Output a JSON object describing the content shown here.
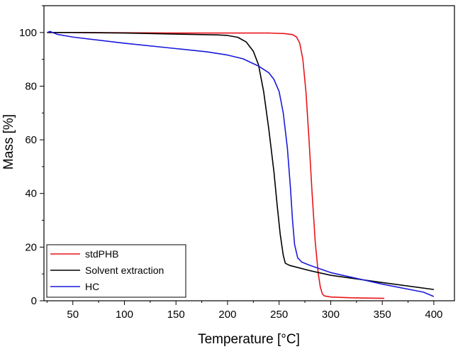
{
  "chart_data": {
    "type": "line",
    "title": "",
    "xlabel": "Temperature [°C]",
    "ylabel": "Mass [%]",
    "xlim": [
      22,
      420
    ],
    "ylim": [
      0,
      110
    ],
    "x_ticks": [
      50,
      100,
      150,
      200,
      250,
      300,
      350,
      400
    ],
    "y_ticks": [
      0,
      20,
      40,
      60,
      80,
      100
    ],
    "legend_position": "bottom-left",
    "series": [
      {
        "name": "stdPHB",
        "color": "#e8141b",
        "points": [
          [
            25,
            100
          ],
          [
            50,
            100
          ],
          [
            100,
            99.9
          ],
          [
            150,
            99.8
          ],
          [
            200,
            99.8
          ],
          [
            240,
            99.8
          ],
          [
            255,
            99.6
          ],
          [
            263,
            99.2
          ],
          [
            267,
            98.3
          ],
          [
            270,
            96
          ],
          [
            273,
            90
          ],
          [
            276,
            78
          ],
          [
            279,
            60
          ],
          [
            282,
            40
          ],
          [
            285,
            22
          ],
          [
            288,
            10
          ],
          [
            290,
            5
          ],
          [
            292,
            2.5
          ],
          [
            294,
            1.8
          ],
          [
            300,
            1.4
          ],
          [
            320,
            1.1
          ],
          [
            352,
            0.9
          ]
        ]
      },
      {
        "name": "Solvent extraction",
        "color": "#000000",
        "points": [
          [
            25,
            100
          ],
          [
            50,
            100
          ],
          [
            100,
            99.8
          ],
          [
            150,
            99.4
          ],
          [
            190,
            99.1
          ],
          [
            200,
            98.9
          ],
          [
            210,
            98.2
          ],
          [
            218,
            96.5
          ],
          [
            225,
            93
          ],
          [
            230,
            88
          ],
          [
            235,
            78
          ],
          [
            240,
            64
          ],
          [
            245,
            48
          ],
          [
            248,
            36
          ],
          [
            251,
            25
          ],
          [
            254,
            17
          ],
          [
            256,
            14
          ],
          [
            260,
            13.2
          ],
          [
            280,
            11.2
          ],
          [
            300,
            9.5
          ],
          [
            350,
            6.8
          ],
          [
            400,
            4.2
          ]
        ]
      },
      {
        "name": "HC",
        "color": "#1a1adb",
        "points": [
          [
            25,
            100
          ],
          [
            28,
            100.4
          ],
          [
            35,
            99.3
          ],
          [
            50,
            98.3
          ],
          [
            100,
            96
          ],
          [
            150,
            94
          ],
          [
            180,
            92.8
          ],
          [
            200,
            91.6
          ],
          [
            215,
            90.2
          ],
          [
            230,
            87.5
          ],
          [
            240,
            85
          ],
          [
            245,
            82.5
          ],
          [
            250,
            78
          ],
          [
            254,
            70
          ],
          [
            258,
            57
          ],
          [
            261,
            42
          ],
          [
            263,
            30
          ],
          [
            265,
            21
          ],
          [
            268,
            16
          ],
          [
            272,
            14.4
          ],
          [
            280,
            13.2
          ],
          [
            300,
            10.5
          ],
          [
            350,
            6.2
          ],
          [
            390,
            3.2
          ],
          [
            400,
            1.6
          ]
        ]
      }
    ]
  }
}
